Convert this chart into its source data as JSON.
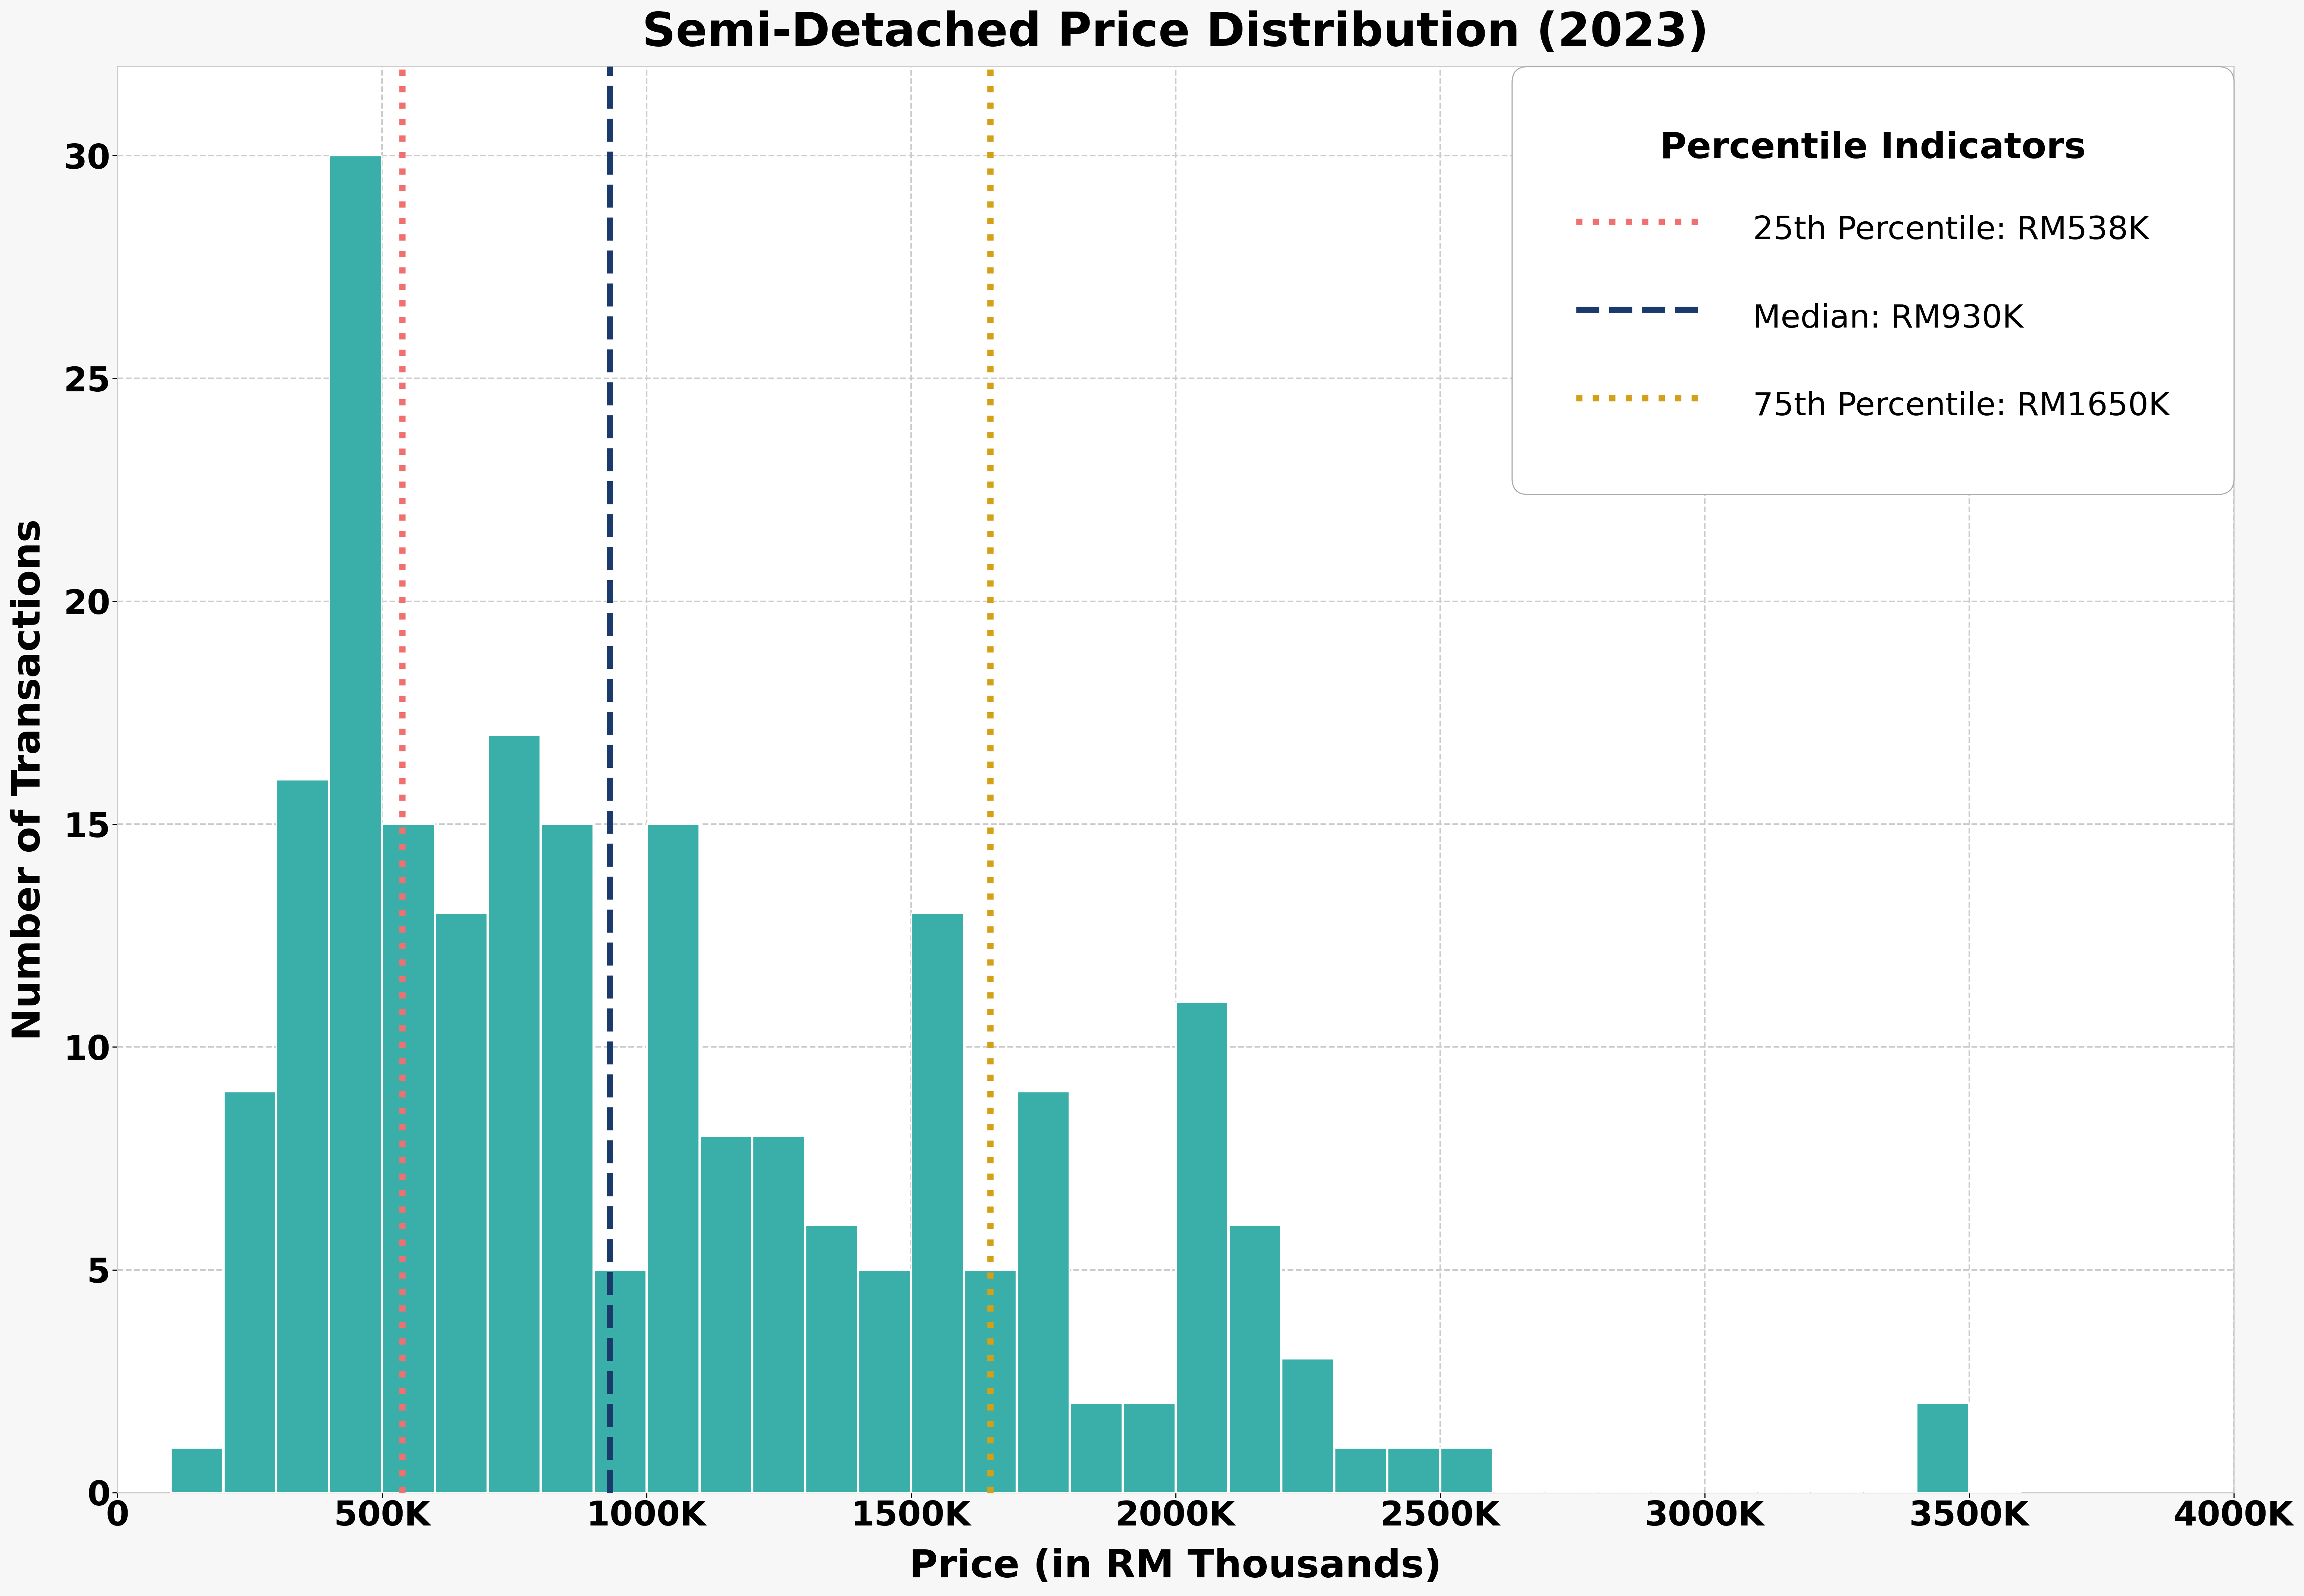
{
  "title": "Semi-Detached Price Distribution (2023)",
  "xlabel": "Price (in RM Thousands)",
  "ylabel": "Number of Transactions",
  "bar_color": "#3aafa9",
  "bar_edgecolor": "white",
  "background_color": "#f7f7f7",
  "plot_bg_color": "#ffffff",
  "grid_color": "#cccccc",
  "xlim": [
    0,
    4000
  ],
  "ylim": [
    0,
    32
  ],
  "xticks": [
    0,
    500,
    1000,
    1500,
    2000,
    2500,
    3000,
    3500,
    4000
  ],
  "xtick_labels": [
    "0",
    "500K",
    "1000K",
    "1500K",
    "2000K",
    "2500K",
    "3000K",
    "3500K",
    "4000K"
  ],
  "yticks": [
    0,
    5,
    10,
    15,
    20,
    25,
    30
  ],
  "bin_width": 100,
  "bins_start": 100,
  "bar_heights": [
    1,
    9,
    16,
    30,
    15,
    13,
    17,
    15,
    5,
    15,
    8,
    8,
    6,
    5,
    13,
    5,
    9,
    2,
    2,
    11,
    6,
    3,
    1,
    1,
    1,
    0,
    0,
    0,
    0,
    0,
    0,
    0,
    0,
    2,
    0
  ],
  "percentile_25": 538,
  "percentile_50": 930,
  "percentile_75": 1650,
  "p25_color": "#f07070",
  "p50_color": "#1a3a6b",
  "p75_color": "#d4a017",
  "legend_title": "Percentile Indicators",
  "legend_labels": [
    "25th Percentile: RM538K",
    "Median: RM930K",
    "75th Percentile: RM1650K"
  ],
  "title_fontsize": 90,
  "label_fontsize": 75,
  "tick_fontsize": 65,
  "legend_fontsize": 62,
  "legend_title_fontsize": 70,
  "line_width": 12,
  "bar_linewidth": 3
}
